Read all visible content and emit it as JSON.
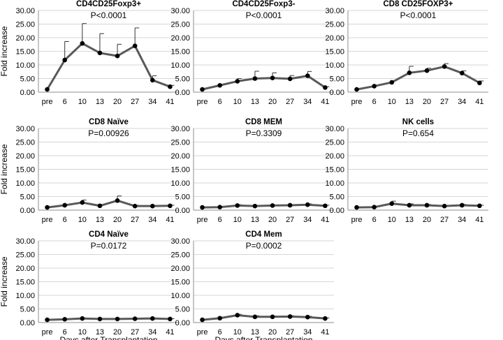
{
  "figure": {
    "ylabel": "Fold increase",
    "xlabel": "Days after Transplantation"
  },
  "chart_data": [
    {
      "type": "line",
      "title": "CD4CD25Foxp3+",
      "pvalue": "P<0.0001",
      "categories": [
        "pre",
        "6",
        "10",
        "13",
        "20",
        "27",
        "34",
        "41"
      ],
      "values": [
        1.0,
        11.8,
        17.9,
        14.4,
        13.3,
        17.0,
        4.4,
        2.0
      ],
      "errors": [
        0,
        6.8,
        7.3,
        7.1,
        4.3,
        6.6,
        1.6,
        0.5
      ],
      "ylim": [
        0,
        30
      ],
      "yticks": [
        "0.00",
        "5.00",
        "10.00",
        "15.00",
        "20.00",
        "25.00",
        "30.00"
      ],
      "ylabel": "Fold increase",
      "xlabel": ""
    },
    {
      "type": "line",
      "title": "CD4CD25Foxp3-",
      "pvalue": "P<0.0001",
      "categories": [
        "pre",
        "6",
        "10",
        "13",
        "20",
        "27",
        "34",
        "41"
      ],
      "values": [
        1.0,
        2.5,
        4.0,
        5.0,
        5.2,
        4.9,
        6.0,
        1.7
      ],
      "errors": [
        0,
        0.4,
        1.0,
        2.7,
        1.9,
        1.2,
        1.6,
        0.3
      ],
      "ylim": [
        0,
        30
      ],
      "yticks": [
        "0.00",
        "5.00",
        "10.00",
        "15.00",
        "20.00",
        "25.00",
        "30.00"
      ],
      "ylabel": "",
      "xlabel": ""
    },
    {
      "type": "line",
      "title": "CD8 CD25FOXP3+",
      "pvalue": "P<0.0001",
      "categories": [
        "pre",
        "6",
        "10",
        "13",
        "20",
        "27",
        "34",
        "41"
      ],
      "values": [
        1.0,
        2.2,
        3.6,
        7.1,
        7.9,
        9.4,
        7.0,
        3.4
      ],
      "errors": [
        0,
        0.3,
        0.5,
        2.4,
        0.9,
        1.1,
        0.8,
        0.7
      ],
      "ylim": [
        0,
        30
      ],
      "yticks": [
        "0.00",
        "5.00",
        "10.00",
        "15.00",
        "20.00",
        "25.00",
        "30.00"
      ],
      "ylabel": "",
      "xlabel": ""
    },
    {
      "type": "line",
      "title": "CD8 Naïve",
      "pvalue": "P=0.00926",
      "categories": [
        "pre",
        "6",
        "10",
        "13",
        "20",
        "27",
        "34",
        "41"
      ],
      "values": [
        1.0,
        1.8,
        2.8,
        1.6,
        3.5,
        1.5,
        1.5,
        1.6
      ],
      "errors": [
        0,
        0.3,
        0.9,
        0.2,
        1.7,
        0.3,
        0.2,
        0.2
      ],
      "ylim": [
        0,
        30
      ],
      "yticks": [
        "0.00",
        "5.00",
        "10.00",
        "15.00",
        "20.00",
        "25.00",
        "30.00"
      ],
      "ylabel": "Fold increase",
      "xlabel": ""
    },
    {
      "type": "line",
      "title": "CD8 MEM",
      "pvalue": "P=0.3309",
      "categories": [
        "pre",
        "6",
        "10",
        "13",
        "20",
        "27",
        "34",
        "41"
      ],
      "values": [
        1.0,
        1.1,
        1.7,
        1.5,
        1.7,
        1.8,
        2.0,
        1.6
      ],
      "errors": [
        0,
        0.1,
        0.3,
        0.2,
        0.2,
        0.2,
        0.3,
        0.2
      ],
      "ylim": [
        0,
        30
      ],
      "yticks": [
        "0.00",
        "5.00",
        "10.00",
        "15.00",
        "20.00",
        "25.00",
        "30.00"
      ],
      "ylabel": "",
      "xlabel": ""
    },
    {
      "type": "line",
      "title": "NK cells",
      "pvalue": "P=0.654",
      "categories": [
        "pre",
        "6",
        "10",
        "13",
        "20",
        "27",
        "34",
        "41"
      ],
      "values": [
        1.0,
        1.1,
        2.4,
        1.8,
        1.8,
        1.5,
        1.8,
        1.6
      ],
      "errors": [
        0,
        0.2,
        0.9,
        0.5,
        0.3,
        0.2,
        0.3,
        0.2
      ],
      "ylim": [
        0,
        30
      ],
      "yticks": [
        "0.00",
        "5.00",
        "10.00",
        "15.00",
        "20.00",
        "25.00",
        "30.00"
      ],
      "ylabel": "",
      "xlabel": ""
    },
    {
      "type": "line",
      "title": "CD4 Naïve",
      "pvalue": "P=0.0172",
      "categories": [
        "pre",
        "6",
        "10",
        "13",
        "20",
        "27",
        "34",
        "41"
      ],
      "values": [
        1.0,
        1.2,
        1.5,
        1.3,
        1.3,
        1.4,
        1.5,
        1.3
      ],
      "errors": [
        0,
        0.1,
        0.2,
        0.1,
        0.1,
        0.1,
        0.2,
        0.1
      ],
      "ylim": [
        0,
        30
      ],
      "yticks": [
        "0.00",
        "5.00",
        "10.00",
        "15.00",
        "20.00",
        "25.00",
        "30.00"
      ],
      "ylabel": "Fold increase",
      "xlabel": "Days after Transplantation"
    },
    {
      "type": "line",
      "title": "CD4 Mem",
      "pvalue": "P=0.0002",
      "categories": [
        "pre",
        "6",
        "10",
        "13",
        "20",
        "27",
        "34",
        "41"
      ],
      "values": [
        1.0,
        1.6,
        2.7,
        2.1,
        2.1,
        2.2,
        2.0,
        1.5
      ],
      "errors": [
        0,
        0.2,
        0.3,
        0.4,
        0.3,
        0.3,
        0.3,
        0.2
      ],
      "ylim": [
        0,
        30
      ],
      "yticks": [
        "0.00",
        "5.00",
        "10.00",
        "15.00",
        "20.00",
        "25.00",
        "30.00"
      ],
      "ylabel": "",
      "xlabel": "Days after Transplantation"
    }
  ]
}
